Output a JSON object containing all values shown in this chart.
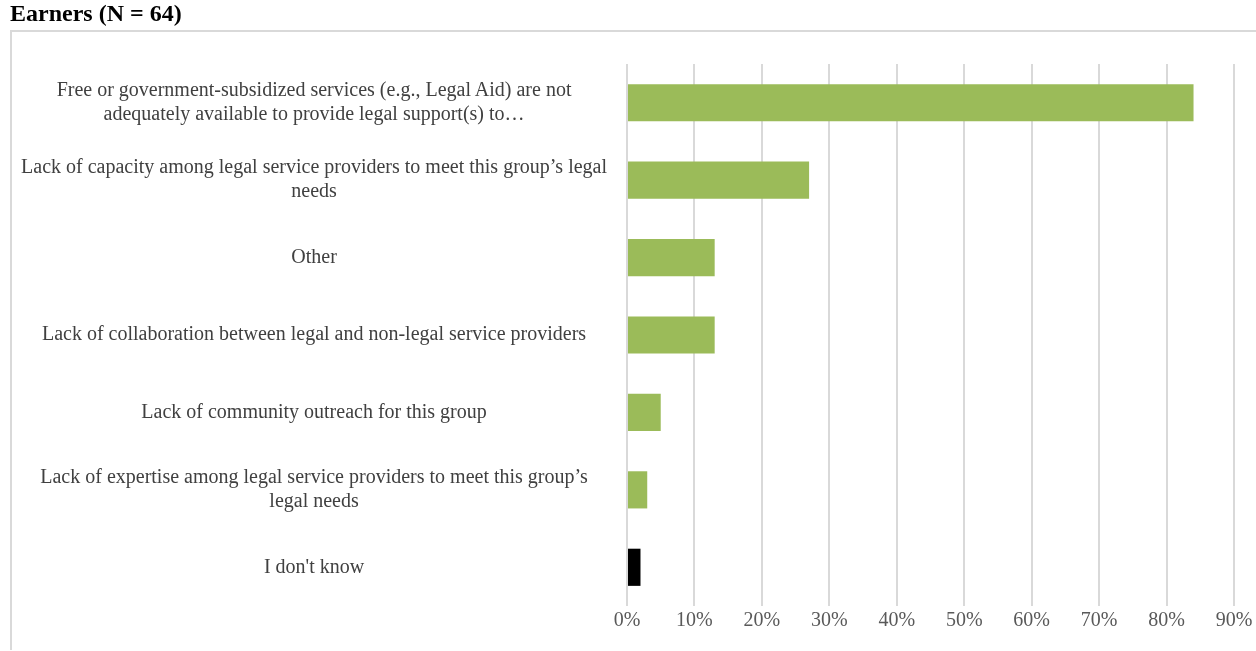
{
  "chart_data": {
    "type": "bar",
    "orientation": "horizontal",
    "title": "Earners (N = 64)",
    "categories": [
      "Free or government-subsidized services (e.g., Legal Aid) are not adequately available to provide legal support(s) to…",
      "Lack of capacity among legal service providers to meet this group’s legal needs",
      "Other",
      "Lack of collaboration between legal and non-legal service providers",
      "Lack of community outreach for this group",
      "Lack of expertise among legal service providers to meet this group’s legal needs",
      "I don't know"
    ],
    "values": [
      84,
      27,
      13,
      13,
      5,
      3,
      2
    ],
    "colors": [
      "#9bbb59",
      "#9bbb59",
      "#9bbb59",
      "#9bbb59",
      "#9bbb59",
      "#9bbb59",
      "#000000"
    ],
    "xlim": [
      0,
      90
    ],
    "xticks": [
      {
        "value": 0,
        "label": "0%"
      },
      {
        "value": 10,
        "label": "10%"
      },
      {
        "value": 20,
        "label": "20%"
      },
      {
        "value": 30,
        "label": "30%"
      },
      {
        "value": 40,
        "label": "40%"
      },
      {
        "value": 50,
        "label": "50%"
      },
      {
        "value": 60,
        "label": "60%"
      },
      {
        "value": 70,
        "label": "70%"
      },
      {
        "value": 80,
        "label": "80%"
      },
      {
        "value": 90,
        "label": "90%"
      }
    ],
    "grid": "x",
    "legend": false
  }
}
